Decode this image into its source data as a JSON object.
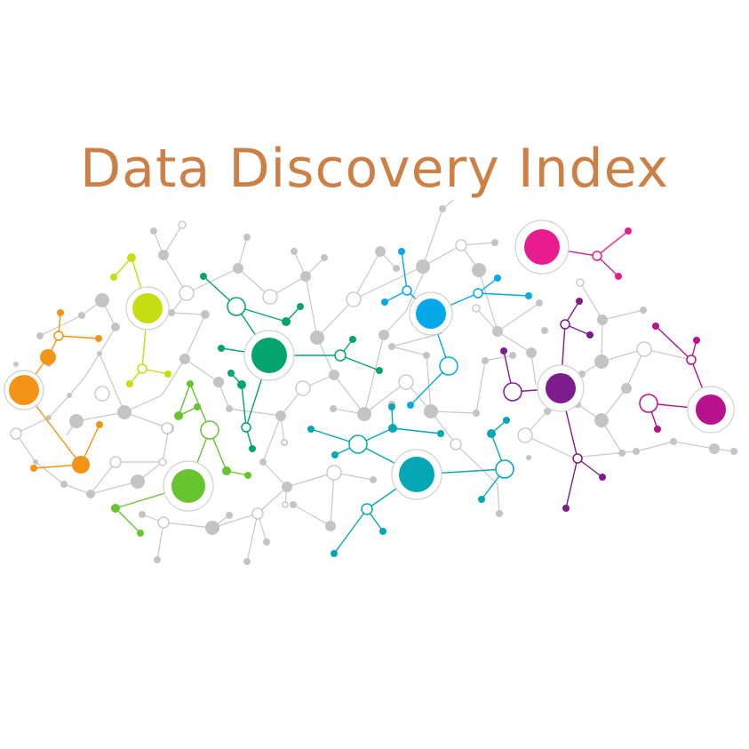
{
  "title": "Data Discovery Index",
  "colors": {
    "title": "#CD8046",
    "grey_node": "#C4C4C4",
    "grey_edge": "#C8C8C8",
    "orange": "#F39416",
    "lime": "#C8DC12",
    "green": "#66C42E",
    "teal_green": "#04A46E",
    "sky": "#05A9EA",
    "teal": "#05A7B6",
    "magenta": "#E71D8F",
    "purple": "#7D1C8D",
    "raspberry": "#B7118E"
  },
  "icon": "network-graph-illustration"
}
